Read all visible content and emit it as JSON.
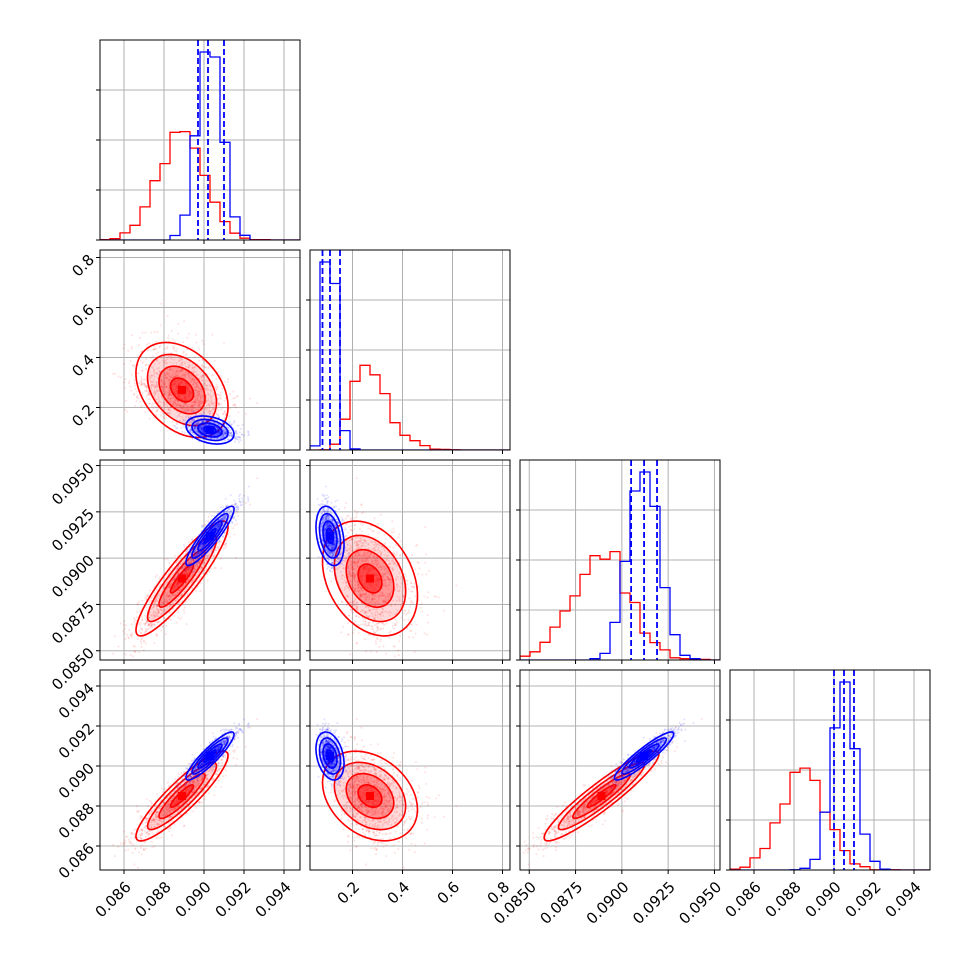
{
  "chart_data": {
    "type": "corner",
    "params": [
      {
        "xlim": [
          0.0848,
          0.0948
        ],
        "ticks": [
          "0.086",
          "0.088",
          "0.090",
          "0.092",
          "0.094"
        ],
        "tick_values": [
          0.086,
          0.088,
          0.09,
          0.092,
          0.094
        ]
      },
      {
        "xlim": [
          0.03,
          0.83
        ],
        "ticks": [
          "0.2",
          "0.4",
          "0.6",
          "0.8"
        ],
        "tick_values": [
          0.2,
          0.4,
          0.6,
          0.8
        ]
      },
      {
        "xlim": [
          0.0845,
          0.0953
        ],
        "ticks": [
          "0.0850",
          "0.0875",
          "0.0900",
          "0.0925",
          "0.0950"
        ],
        "tick_values": [
          0.085,
          0.0875,
          0.09,
          0.0925,
          0.095
        ]
      },
      {
        "xlim": [
          0.0848,
          0.0948
        ],
        "ticks": [
          "0.086",
          "0.088",
          "0.090",
          "0.092",
          "0.094"
        ],
        "tick_values": [
          0.086,
          0.088,
          0.09,
          0.092,
          0.094
        ]
      }
    ],
    "series": [
      {
        "color": "#ff0000",
        "means": [
          0.0889,
          0.27,
          0.0889,
          0.0885
        ],
        "sigmas": [
          0.00115,
          0.095,
          0.00155,
          0.00112
        ],
        "corr": [
          [
            1,
            -0.35,
            0.9,
            0.9
          ],
          [
            -0.35,
            1,
            -0.3,
            -0.3
          ],
          [
            0.9,
            -0.3,
            1,
            0.93
          ],
          [
            0.9,
            -0.3,
            0.93,
            1
          ]
        ]
      },
      {
        "color": "#0000ff",
        "means": [
          0.0903,
          0.11,
          0.0912,
          0.0905
        ],
        "sigmas": [
          0.0006,
          0.028,
          0.0008,
          0.0006
        ],
        "corr": [
          [
            1,
            -0.3,
            0.9,
            0.9
          ],
          [
            -0.3,
            1,
            -0.3,
            -0.3
          ],
          [
            0.9,
            -0.3,
            1,
            0.92
          ],
          [
            0.9,
            -0.3,
            0.92,
            1
          ]
        ]
      }
    ],
    "quantile_lines": [
      [
        0.0897,
        0.0902,
        0.091
      ],
      [
        0.08,
        0.11,
        0.15
      ],
      [
        0.0905,
        0.0912,
        0.0919
      ],
      [
        0.09,
        0.0905,
        0.091
      ]
    ],
    "quantile_color": "#0000ff",
    "grid": true
  }
}
